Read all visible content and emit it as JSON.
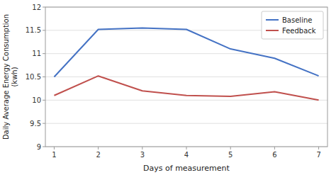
{
  "chart_data": {
    "type": "line",
    "x": [
      1,
      2,
      3,
      4,
      5,
      6,
      7
    ],
    "series": [
      {
        "name": "Baseline",
        "color": "#4472C4",
        "values": [
          10.5,
          11.52,
          11.55,
          11.52,
          11.1,
          10.9,
          10.52
        ]
      },
      {
        "name": "Feedback",
        "color": "#C0504D",
        "values": [
          10.1,
          10.52,
          10.2,
          10.1,
          10.08,
          10.18,
          10.0
        ]
      }
    ],
    "xlabel": "Days of measurement",
    "ylabel": "Daily Average Energy Consumption\n(kwh)",
    "xlim": [
      0.8,
      7.2
    ],
    "xticks": [
      1,
      2,
      3,
      4,
      5,
      6,
      7
    ],
    "ylim": [
      9,
      12
    ],
    "yticks": [
      9,
      9.5,
      10,
      10.5,
      11,
      11.5,
      12
    ],
    "grid": true,
    "legend": "upper right"
  }
}
